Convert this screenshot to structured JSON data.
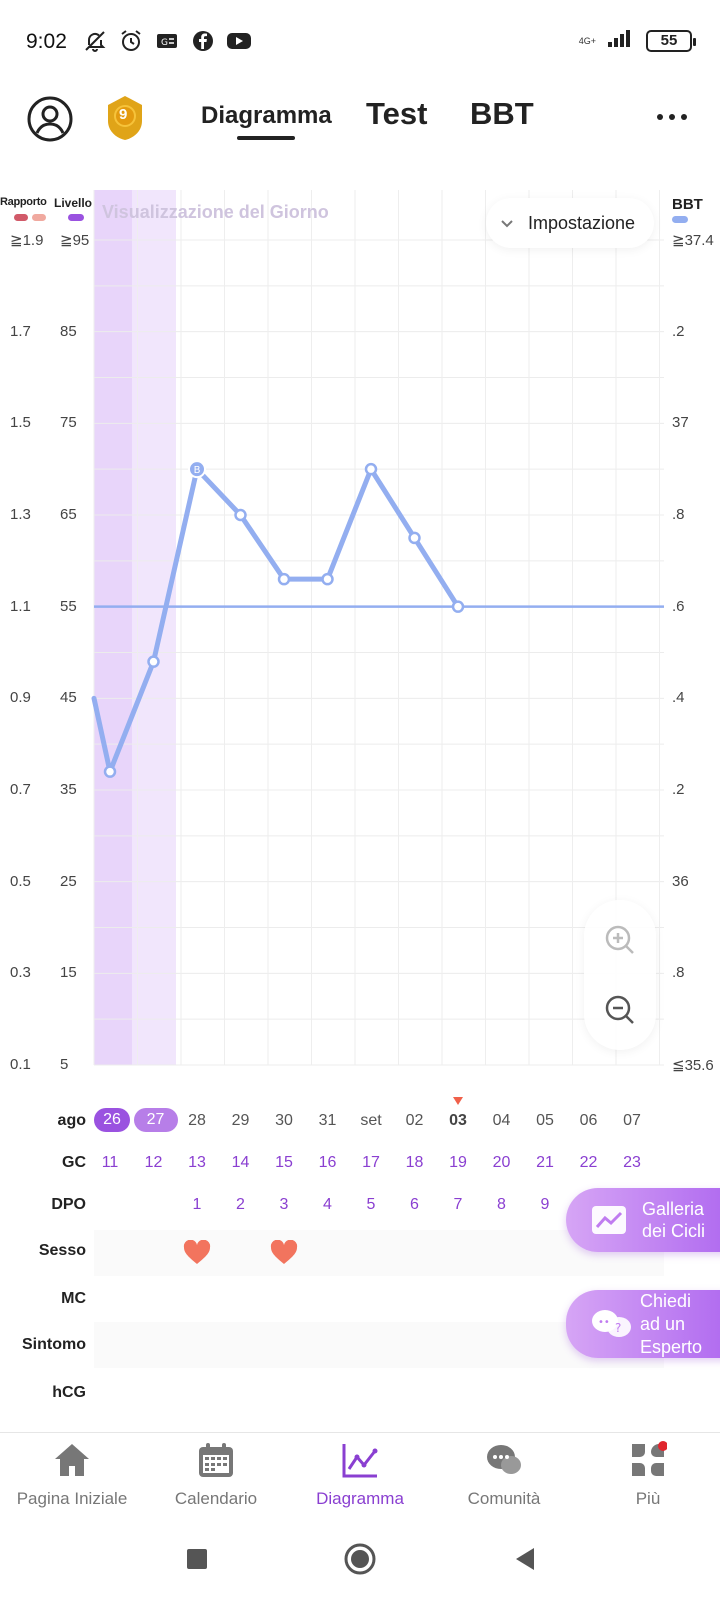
{
  "status_bar": {
    "time": "9:02",
    "network": "4G+",
    "battery": "55",
    "icons": [
      "mute-icon",
      "alarm-icon",
      "g-news-icon",
      "facebook-icon",
      "youtube-icon"
    ]
  },
  "header": {
    "tabs": [
      {
        "label": "Diagramma",
        "active": true
      },
      {
        "label": "Test"
      },
      {
        "label": "BBT"
      }
    ],
    "medal_level": "9"
  },
  "chart": {
    "legend": {
      "rapporto": "Rapporto",
      "livello": "Livello",
      "bbt": "BBT"
    },
    "day_view_label": "Visualizzazione del Giorno",
    "setting_label": "Impostazione",
    "ratio_ticks": [
      "≧1.9",
      "1.7",
      "1.5",
      "1.3",
      "1.1",
      "0.9",
      "0.7",
      "0.5",
      "0.3",
      "0.1"
    ],
    "level_ticks": [
      "≧95",
      "85",
      "75",
      "65",
      "55",
      "45",
      "35",
      "25",
      "15",
      "5"
    ],
    "bbt_ticks": [
      "≧37.4",
      ".2",
      "37",
      ".8",
      ".6",
      ".4",
      ".2",
      "36",
      ".8",
      "≦35.6"
    ],
    "colors": {
      "line": "#93aef0",
      "period": "#e8d5fa",
      "period_light": "#f1e6fc",
      "accent": "#8a3fd1"
    }
  },
  "chart_data": {
    "type": "line",
    "x": [
      "26",
      "27",
      "28",
      "29",
      "30",
      "31",
      "set",
      "02",
      "03"
    ],
    "series": [
      {
        "values": [
          37,
          49,
          70,
          65,
          58,
          58,
          70,
          62.5,
          55
        ]
      }
    ],
    "reference_line": 55,
    "ylim": [
      5,
      95
    ],
    "peak_marker": "B"
  },
  "table": {
    "month_label": "ago",
    "dates": [
      "26",
      "27",
      "28",
      "29",
      "30",
      "31",
      "set",
      "02",
      "03",
      "04",
      "05",
      "06",
      "07"
    ],
    "today_index": 8,
    "rows": {
      "gc": {
        "label": "GC",
        "values": [
          "11",
          "12",
          "13",
          "14",
          "15",
          "16",
          "17",
          "18",
          "19",
          "20",
          "21",
          "22",
          "23"
        ]
      },
      "dpo": {
        "label": "DPO",
        "values": [
          "",
          "",
          "1",
          "2",
          "3",
          "4",
          "5",
          "6",
          "7",
          "8",
          "9",
          "",
          ""
        ]
      },
      "sesso": {
        "label": "Sesso",
        "hearts": [
          2,
          4
        ]
      },
      "mc": {
        "label": "MC"
      },
      "sintomo": {
        "label": "Sintomo"
      },
      "hcg": {
        "label": "hCG"
      }
    }
  },
  "floating": {
    "gallery_line1": "Galleria",
    "gallery_line2": "dei Cicli",
    "expert_line1": "Chiedi",
    "expert_line2": "ad un",
    "expert_line3": "Esperto"
  },
  "bottom_nav": [
    {
      "label": "Pagina Iniziale",
      "icon": "home-icon"
    },
    {
      "label": "Calendario",
      "icon": "calendar-icon"
    },
    {
      "label": "Diagramma",
      "icon": "chart-icon",
      "active": true
    },
    {
      "label": "Comunità",
      "icon": "community-icon"
    },
    {
      "label": "Più",
      "icon": "more-grid-icon"
    }
  ]
}
